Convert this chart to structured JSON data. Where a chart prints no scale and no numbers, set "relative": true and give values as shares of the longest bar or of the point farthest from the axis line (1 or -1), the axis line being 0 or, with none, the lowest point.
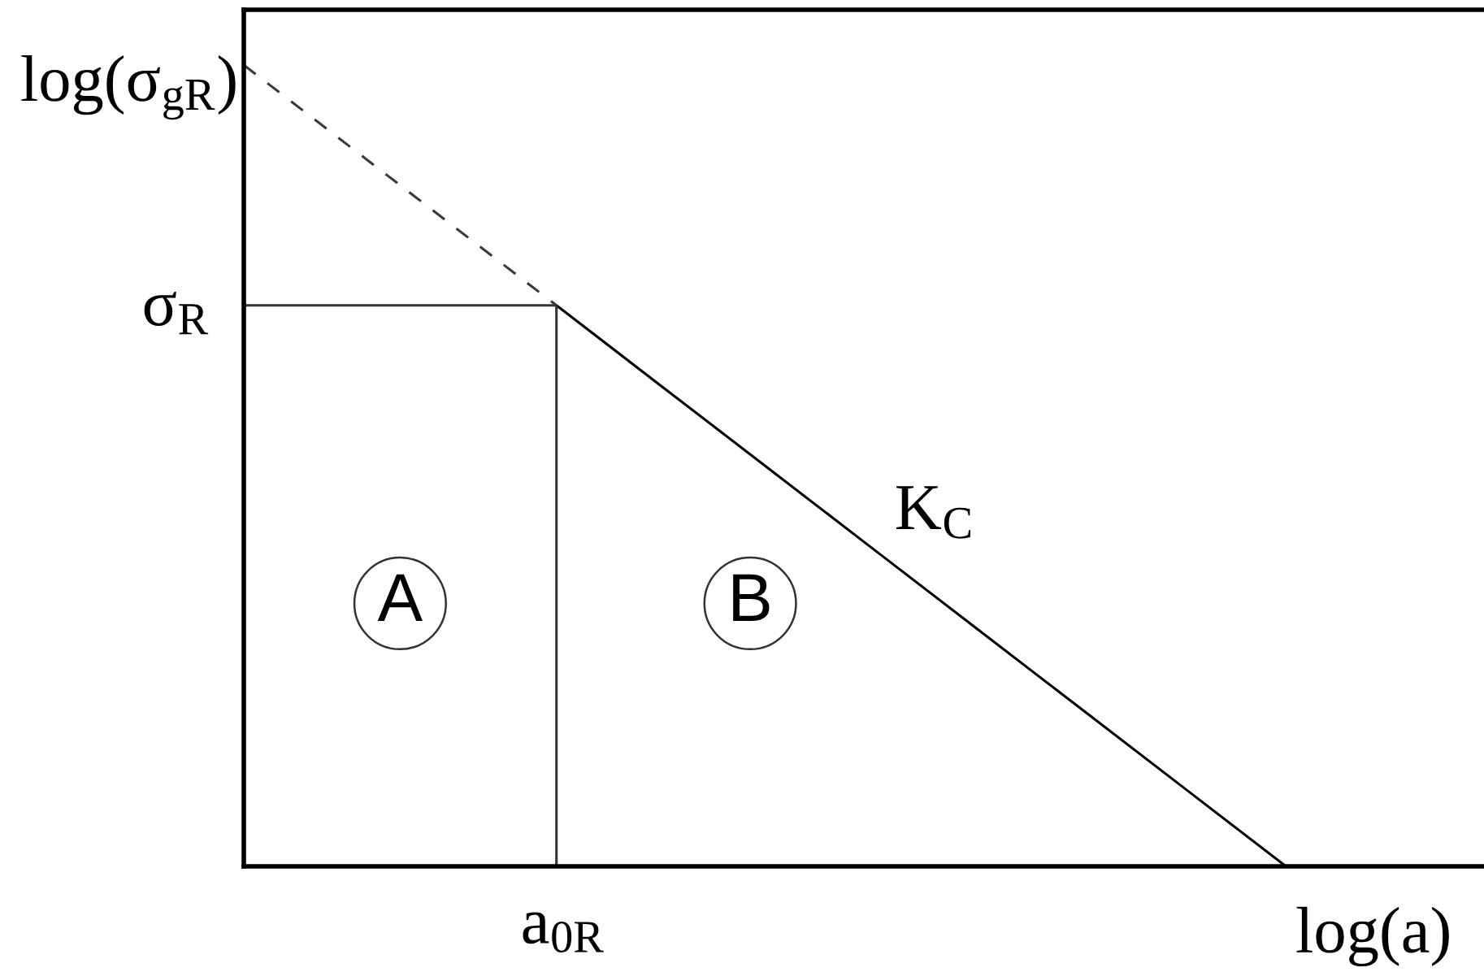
{
  "chart_data": {
    "type": "line",
    "relative": true,
    "xlabel": "log(a)",
    "ylabel": "log(σ$_{gR}$)",
    "categories": [
      null,
      null,
      null,
      null,
      null,
      null,
      null,
      null,
      null,
      null,
      null
    ],
    "series": [
      {
        "color": "#3a3a3a",
        "line_style": "dashed",
        "values": [
          1,
          0.9,
          0.8,
          0.7,
          null,
          null,
          null,
          null,
          null,
          null,
          null
        ]
      },
      {
        "name": "K$_{C}$",
        "color": "#000000",
        "line_style": "solid",
        "values": [
          null,
          null,
          null,
          0.7,
          0.6,
          0.5,
          0.4,
          0.3,
          0.2,
          0.1,
          0
        ]
      },
      {
        "type": "step",
        "color": "#333333",
        "line_style": "solid",
        "values": [
          0.7,
          0.7,
          0.7,
          0,
          null,
          null,
          null,
          null,
          null,
          null,
          null
        ]
      }
    ],
    "annotations": [
      "σ$_{R}$",
      {
        "text": "a$_{0R}$",
        "y": 0
      },
      "A",
      "B"
    ]
  }
}
